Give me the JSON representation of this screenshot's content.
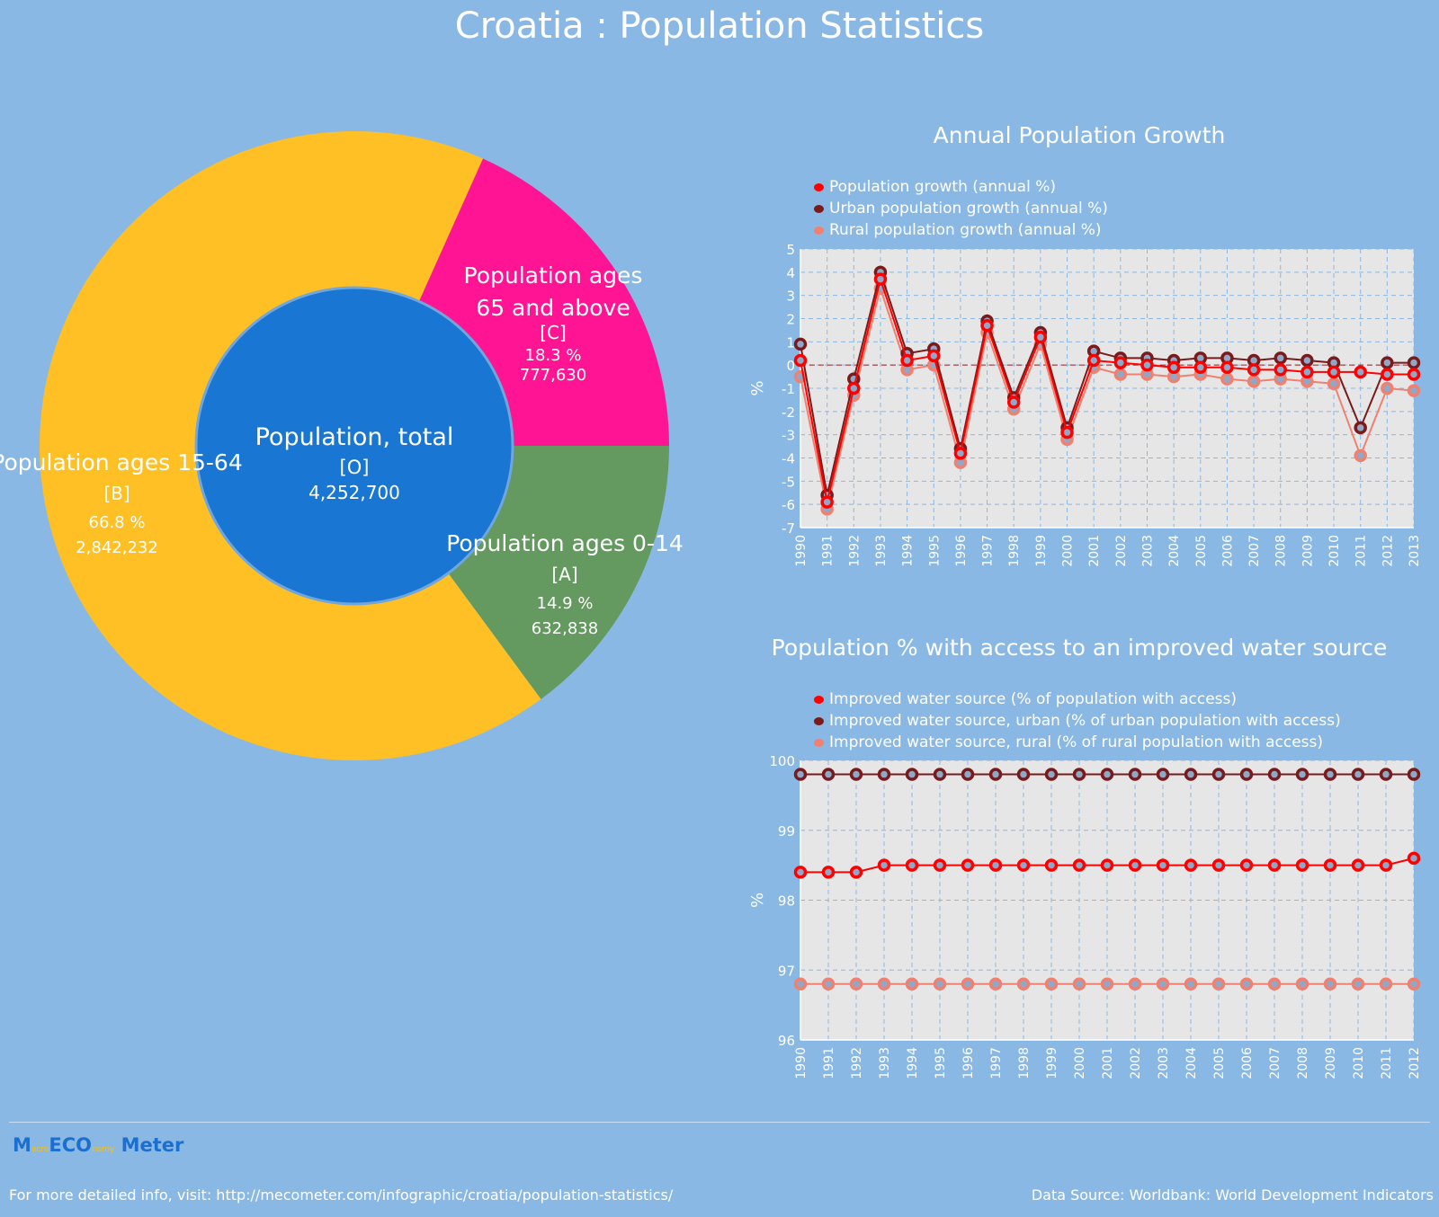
{
  "title": "Croatia : Population Statistics",
  "chart_data": [
    {
      "type": "pie",
      "center_label": {
        "name": "Population, total",
        "code": "[O]",
        "value": "4,252,700"
      },
      "slices": [
        {
          "name": "Population ages 0-14",
          "code": "[A]",
          "percent": 14.9,
          "percent_label": "14.9 %",
          "value_label": "632,838",
          "color": "#64995f"
        },
        {
          "name": "Population ages 15-64",
          "code": "[B]",
          "percent": 66.8,
          "percent_label": "66.8 %",
          "value_label": "2,842,232",
          "color": "#ffc025"
        },
        {
          "name": "Population ages 65 and above",
          "code": "[C]",
          "percent": 18.3,
          "percent_label": "18.3 %",
          "value_label": "777,630",
          "color": "#ff1593"
        }
      ],
      "center_color": "#1976d2"
    },
    {
      "type": "line",
      "title": "Annual Population Growth",
      "ylabel": "%",
      "ylim": [
        -7,
        5
      ],
      "yticks": [
        "5",
        "4",
        "3",
        "2",
        "1",
        "0",
        "-1",
        "-2",
        "-3",
        "-4",
        "-5",
        "-6",
        "-7"
      ],
      "x": [
        "1990",
        "1991",
        "1992",
        "1993",
        "1994",
        "1995",
        "1996",
        "1997",
        "1998",
        "1999",
        "2000",
        "2001",
        "2002",
        "2003",
        "2004",
        "2005",
        "2006",
        "2007",
        "2008",
        "2009",
        "2010",
        "2011",
        "2012",
        "2013"
      ],
      "grid": true,
      "legend": "top-left",
      "series": [
        {
          "name": "Population growth (annual %)",
          "color": "#ff0000",
          "values": [
            0.2,
            -5.9,
            -1.0,
            3.7,
            0.2,
            0.4,
            -3.8,
            1.7,
            -1.6,
            1.2,
            -2.9,
            0.2,
            0.1,
            0.0,
            -0.1,
            -0.1,
            -0.1,
            -0.2,
            -0.2,
            -0.3,
            -0.3,
            -0.3,
            -0.4,
            -0.4
          ]
        },
        {
          "name": "Urban population growth (annual %)",
          "color": "#7a1a1a",
          "values": [
            0.9,
            -5.6,
            -0.6,
            4.0,
            0.5,
            0.7,
            -3.6,
            1.9,
            -1.4,
            1.4,
            -2.7,
            0.6,
            0.3,
            0.3,
            0.2,
            0.3,
            0.3,
            0.2,
            0.3,
            0.2,
            0.1,
            -2.7,
            0.1,
            0.1
          ]
        },
        {
          "name": "Rural population growth (annual %)",
          "color": "#f08070",
          "values": [
            -0.5,
            -6.2,
            -1.3,
            3.3,
            -0.2,
            0.0,
            -4.2,
            1.4,
            -1.9,
            0.9,
            -3.2,
            -0.1,
            -0.4,
            -0.4,
            -0.5,
            -0.4,
            -0.6,
            -0.7,
            -0.6,
            -0.7,
            -0.8,
            -3.9,
            -1.0,
            -1.1
          ]
        }
      ]
    },
    {
      "type": "line",
      "title": "Population % with access to an improved water source",
      "ylabel": "%",
      "ylim": [
        96,
        100
      ],
      "yticks": [
        "100",
        "99",
        "98",
        "97",
        "96"
      ],
      "x": [
        "1990",
        "1991",
        "1992",
        "1993",
        "1994",
        "1995",
        "1996",
        "1997",
        "1998",
        "1999",
        "2000",
        "2001",
        "2002",
        "2003",
        "2004",
        "2005",
        "2006",
        "2007",
        "2008",
        "2009",
        "2010",
        "2011",
        "2012"
      ],
      "grid": true,
      "legend": "top-left",
      "series": [
        {
          "name": "Improved water source (% of population with access)",
          "color": "#ff0000",
          "values": [
            98.4,
            98.4,
            98.4,
            98.5,
            98.5,
            98.5,
            98.5,
            98.5,
            98.5,
            98.5,
            98.5,
            98.5,
            98.5,
            98.5,
            98.5,
            98.5,
            98.5,
            98.5,
            98.5,
            98.5,
            98.5,
            98.5,
            98.6
          ]
        },
        {
          "name": "Improved water source, urban (% of urban population with access)",
          "color": "#7a1a1a",
          "values": [
            99.8,
            99.8,
            99.8,
            99.8,
            99.8,
            99.8,
            99.8,
            99.8,
            99.8,
            99.8,
            99.8,
            99.8,
            99.8,
            99.8,
            99.8,
            99.8,
            99.8,
            99.8,
            99.8,
            99.8,
            99.8,
            99.8,
            99.8
          ]
        },
        {
          "name": "Improved water source, rural (% of rural population with access)",
          "color": "#f08070",
          "values": [
            96.8,
            96.8,
            96.8,
            96.8,
            96.8,
            96.8,
            96.8,
            96.8,
            96.8,
            96.8,
            96.8,
            96.8,
            96.8,
            96.8,
            96.8,
            96.8,
            96.8,
            96.8,
            96.8,
            96.8,
            96.8,
            96.8,
            96.8
          ]
        }
      ]
    }
  ],
  "footer": {
    "logo_m": "M",
    "logo_acro": "acro",
    "logo_eco": "ECO",
    "logo_nomy": "nomy",
    "logo_meter": "Meter",
    "info": "For more detailed info, visit: http://mecometer.com/infographic/croatia/population-statistics/",
    "source": "Data Source: Worldbank: World Development Indicators"
  }
}
